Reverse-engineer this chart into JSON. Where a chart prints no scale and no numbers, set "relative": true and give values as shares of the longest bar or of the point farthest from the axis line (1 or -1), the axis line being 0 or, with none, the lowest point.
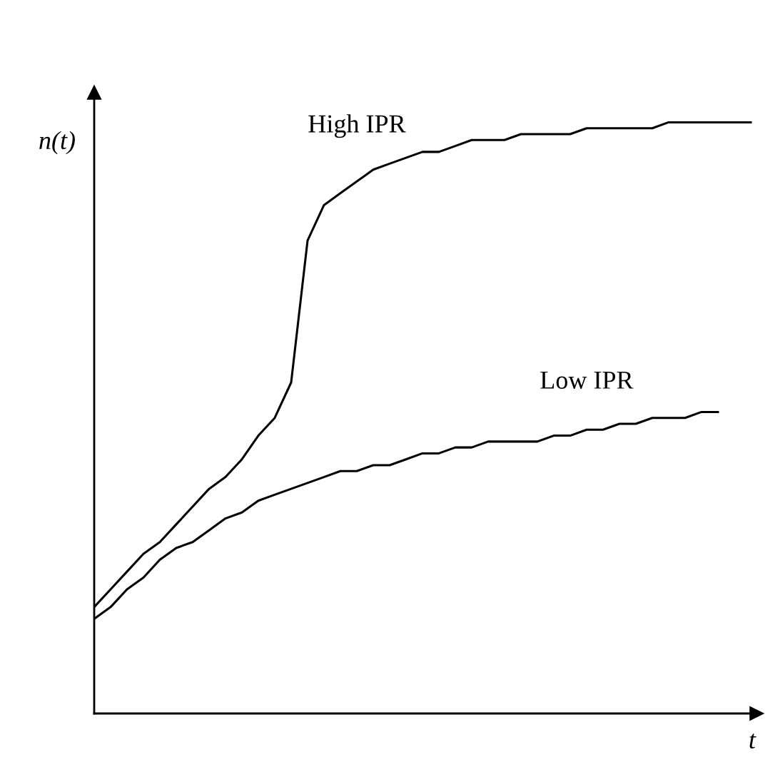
{
  "chart_data": {
    "type": "line",
    "relative": true,
    "xlabel": "t",
    "ylabel": "n(t)",
    "legend": false,
    "marker": "none",
    "line_style": "solid",
    "categories": [
      null,
      null,
      null,
      null,
      null,
      null,
      null,
      null,
      null,
      null,
      null,
      null,
      null,
      null,
      null,
      null,
      null,
      null,
      null,
      null,
      null,
      null,
      null,
      null,
      null,
      null,
      null,
      null,
      null,
      null,
      null,
      null,
      null,
      null,
      null,
      null,
      null,
      null,
      null,
      null,
      null
    ],
    "series": [
      {
        "name": "High IPR",
        "color": "#000000",
        "values": [
          0.18,
          0.21,
          0.24,
          0.27,
          0.29,
          0.32,
          0.35,
          0.38,
          0.4,
          0.43,
          0.47,
          0.5,
          0.56,
          0.8,
          0.86,
          0.88,
          0.9,
          0.92,
          0.93,
          0.94,
          0.95,
          0.95,
          0.96,
          0.97,
          0.97,
          0.97,
          0.98,
          0.98,
          0.98,
          0.98,
          0.99,
          0.99,
          0.99,
          0.99,
          0.99,
          1.0,
          1.0,
          1.0,
          1.0,
          1.0,
          1.0
        ]
      },
      {
        "name": "Low IPR",
        "color": "#000000",
        "values": [
          0.16,
          0.18,
          0.21,
          0.23,
          0.26,
          0.28,
          0.29,
          0.31,
          0.33,
          0.34,
          0.36,
          0.37,
          0.38,
          0.39,
          0.4,
          0.41,
          0.41,
          0.42,
          0.42,
          0.43,
          0.44,
          0.44,
          0.45,
          0.45,
          0.46,
          0.46,
          0.46,
          0.46,
          0.47,
          0.47,
          0.48,
          0.48,
          0.49,
          0.49,
          0.5,
          0.5,
          0.5,
          0.51,
          0.51,
          null,
          null
        ]
      }
    ]
  }
}
